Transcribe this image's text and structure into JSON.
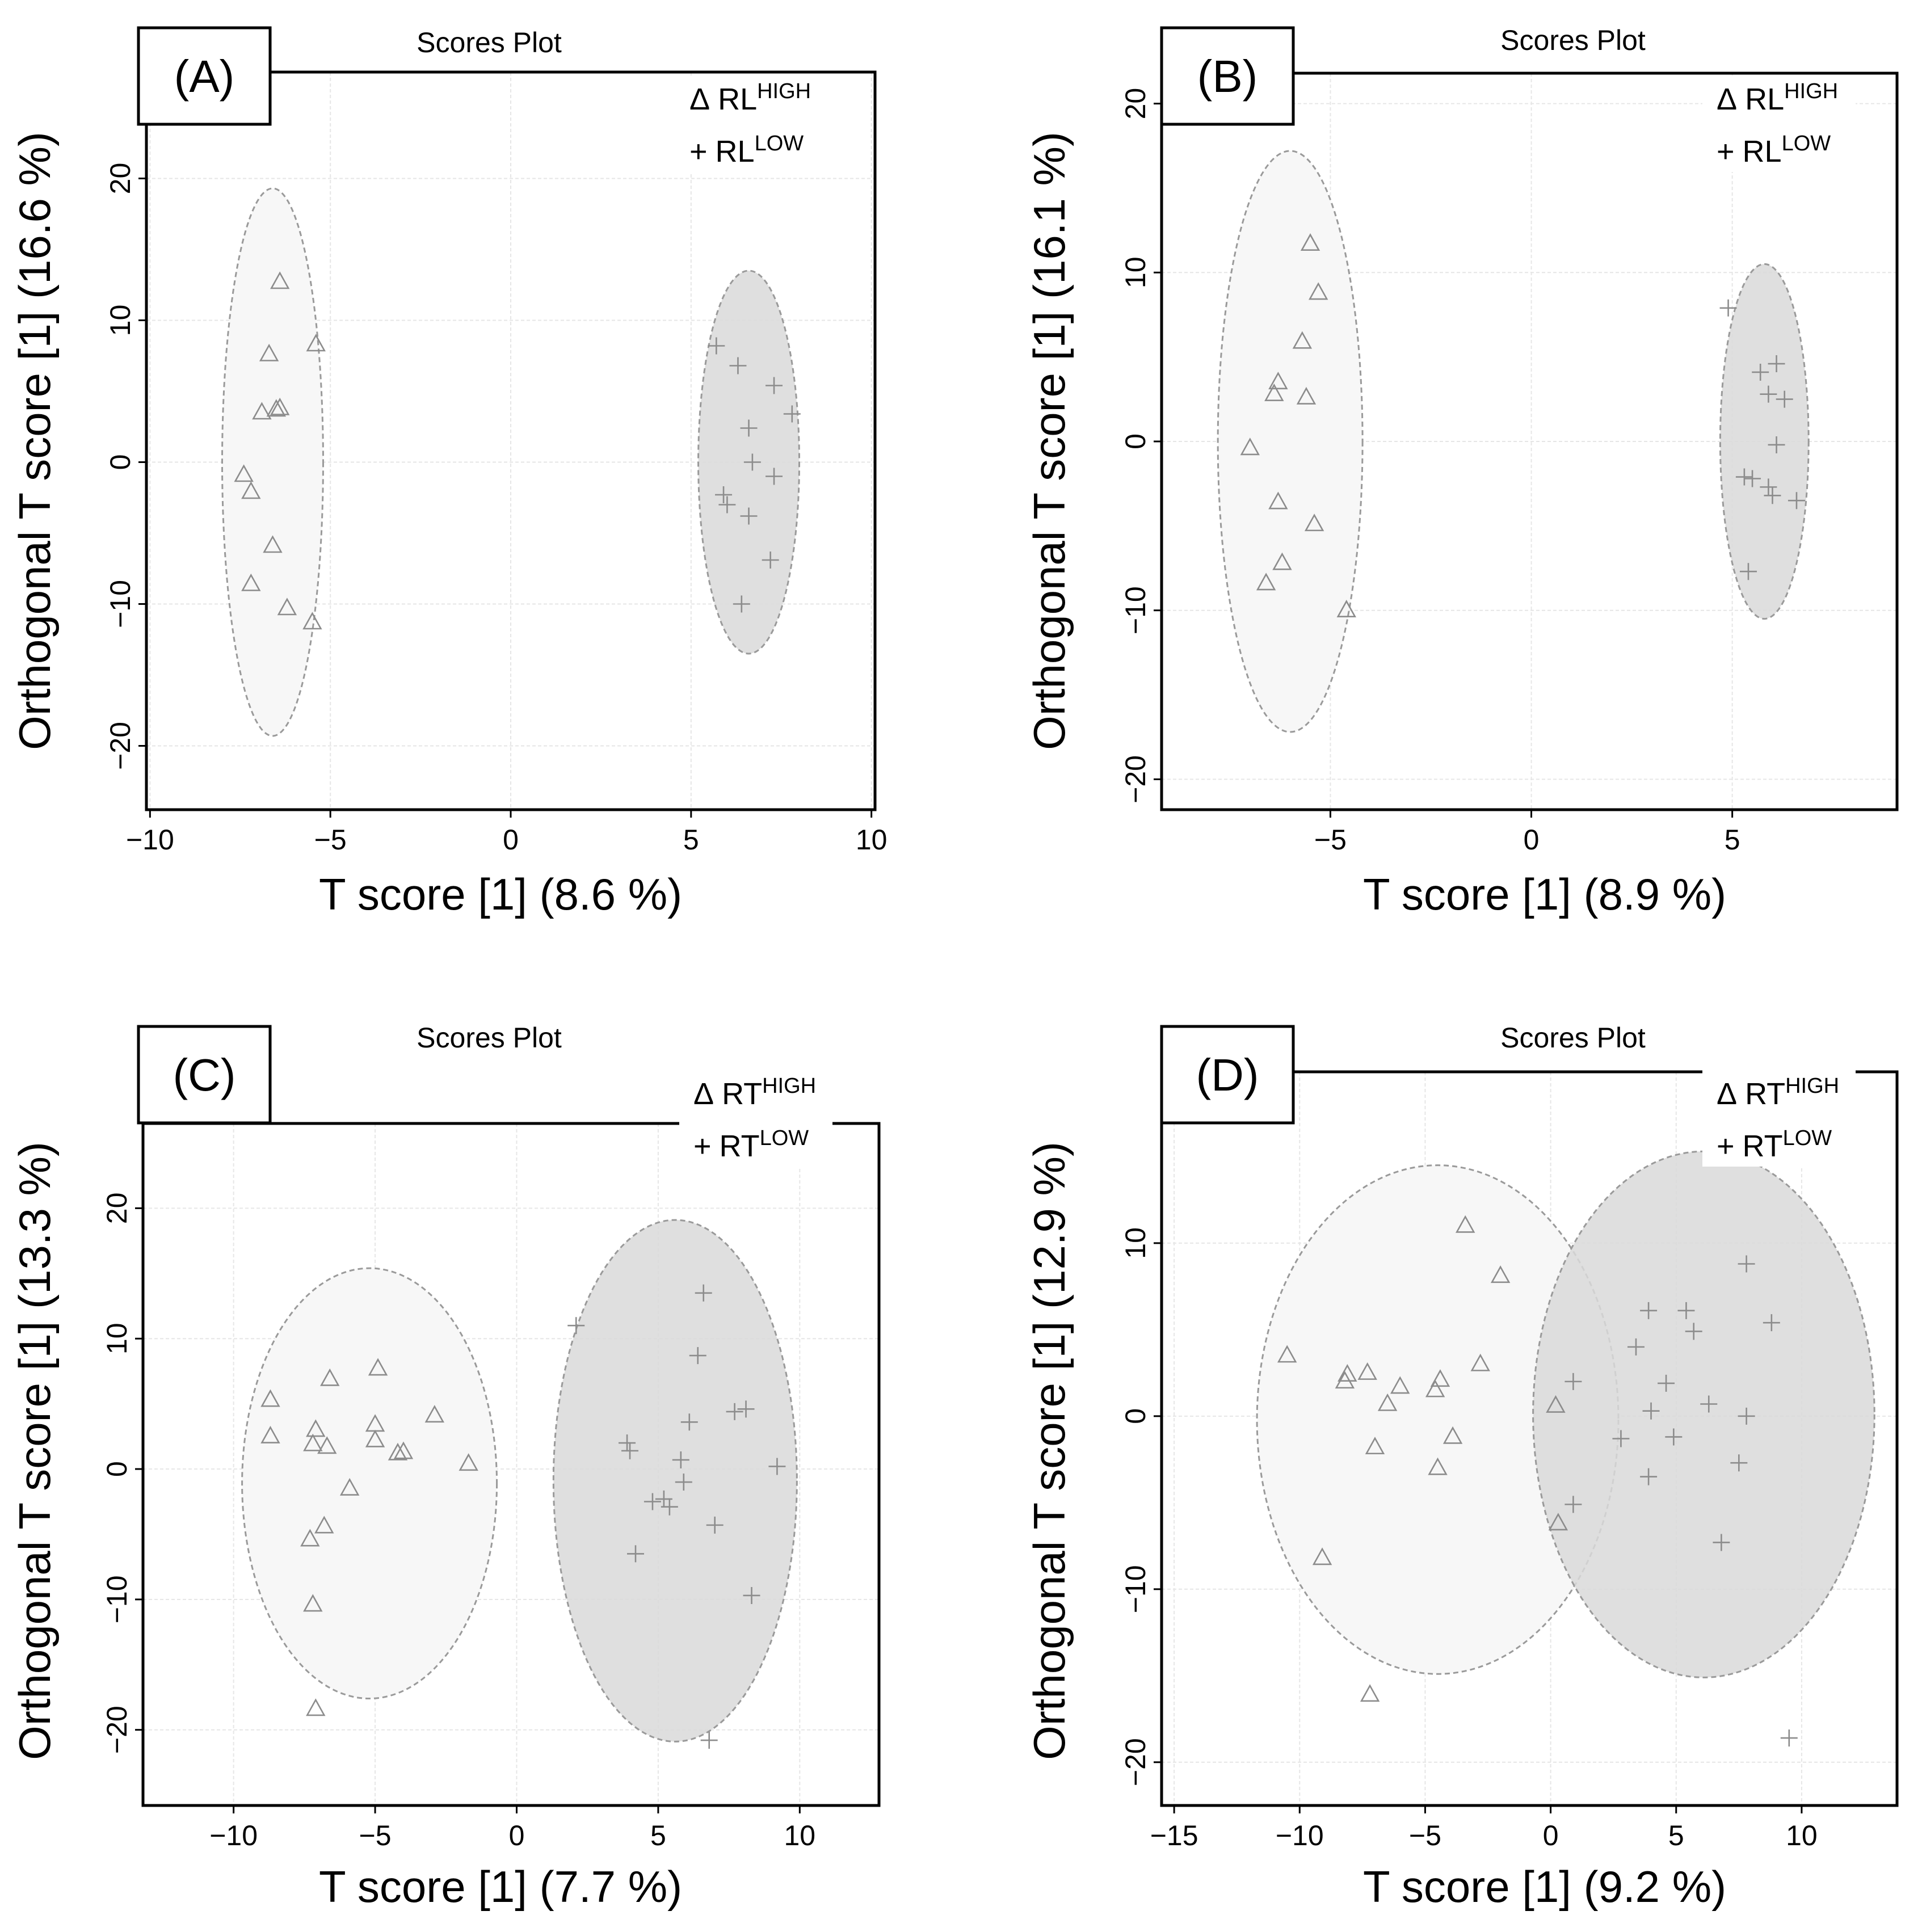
{
  "chart_data": [
    {
      "type": "scatter",
      "panel_label": "(A)",
      "title": "Scores Plot",
      "xlabel": "T score [1] (8.6 %)",
      "ylabel": "Orthogonal T score [1] (16.6 %)",
      "xlim": [
        -10.1,
        10.1
      ],
      "ylim": [
        -24.5,
        27.5
      ],
      "xticks": [
        -10,
        -5,
        0,
        5,
        10
      ],
      "xtick_labels": [
        "−10",
        "−5",
        "0",
        "5",
        "10"
      ],
      "yticks": [
        -20,
        -10,
        0,
        10,
        20
      ],
      "ytick_labels": [
        "−20",
        "−10",
        "0",
        "10",
        "20"
      ],
      "grid": true,
      "legend": [
        {
          "symbol": "Δ",
          "text": "RL",
          "sup": "HIGH"
        },
        {
          "symbol": "+",
          "text": "RL",
          "sup": "LOW"
        }
      ],
      "ellipses": [
        {
          "series": "RL HIGH",
          "cx": -6.6,
          "cy": 0,
          "rx": 1.4,
          "ry": 19.3,
          "fill": "#f7f7f7"
        },
        {
          "series": "RL LOW",
          "cx": 6.6,
          "cy": 0,
          "rx": 1.4,
          "ry": 13.5,
          "fill": "#d9d9d9"
        }
      ],
      "series": [
        {
          "name": "RL HIGH",
          "marker": "triangle",
          "points": [
            [
              -6.4,
              12.7
            ],
            [
              -5.4,
              8.3
            ],
            [
              -6.7,
              7.6
            ],
            [
              -6.4,
              3.8
            ],
            [
              -6.5,
              3.7
            ],
            [
              -6.9,
              3.5
            ],
            [
              -7.4,
              -0.9
            ],
            [
              -7.2,
              -2.1
            ],
            [
              -6.6,
              -5.9
            ],
            [
              -7.2,
              -8.6
            ],
            [
              -6.2,
              -10.3
            ],
            [
              -5.5,
              -11.3
            ]
          ]
        },
        {
          "name": "RL LOW",
          "marker": "plus",
          "points": [
            [
              5.7,
              8.2
            ],
            [
              6.3,
              6.8
            ],
            [
              7.3,
              5.4
            ],
            [
              7.8,
              3.4
            ],
            [
              6.6,
              2.4
            ],
            [
              6.7,
              0
            ],
            [
              7.3,
              -1
            ],
            [
              5.9,
              -2.3
            ],
            [
              6.0,
              -3
            ],
            [
              6.6,
              -3.8
            ],
            [
              7.2,
              -6.9
            ],
            [
              6.4,
              -10
            ]
          ]
        }
      ]
    },
    {
      "type": "scatter",
      "panel_label": "(B)",
      "title": "Scores Plot",
      "xlabel": "T score [1] (8.9 %)",
      "ylabel": "Orthogonal T score [1] (16.1 %)",
      "xlim": [
        -9.2,
        9.1
      ],
      "ylim": [
        -21.8,
        21.8
      ],
      "xticks": [
        -5,
        0,
        5
      ],
      "xtick_labels": [
        "−5",
        "0",
        "5"
      ],
      "yticks": [
        -20,
        -10,
        0,
        10,
        20
      ],
      "ytick_labels": [
        "−20",
        "−10",
        "0",
        "10",
        "20"
      ],
      "grid": true,
      "legend": [
        {
          "symbol": "Δ",
          "text": "RL",
          "sup": "HIGH"
        },
        {
          "symbol": "+",
          "text": "RL",
          "sup": "LOW"
        }
      ],
      "ellipses": [
        {
          "series": "RL HIGH",
          "cx": -6.0,
          "cy": 0,
          "rx": 1.8,
          "ry": 17.2,
          "fill": "#f7f7f7"
        },
        {
          "series": "RL LOW",
          "cx": 5.8,
          "cy": 0,
          "rx": 1.1,
          "ry": 10.5,
          "fill": "#d9d9d9"
        }
      ],
      "series": [
        {
          "name": "RL HIGH",
          "marker": "triangle",
          "points": [
            [
              -5.5,
              11.7
            ],
            [
              -5.3,
              8.8
            ],
            [
              -5.7,
              5.9
            ],
            [
              -6.3,
              3.5
            ],
            [
              -6.4,
              2.8
            ],
            [
              -5.6,
              2.6
            ],
            [
              -7.0,
              -0.4
            ],
            [
              -6.3,
              -3.6
            ],
            [
              -5.4,
              -4.9
            ],
            [
              -6.2,
              -7.2
            ],
            [
              -6.6,
              -8.4
            ],
            [
              -4.6,
              -10
            ]
          ]
        },
        {
          "name": "RL LOW",
          "marker": "plus",
          "points": [
            [
              4.9,
              7.9
            ],
            [
              6.1,
              4.6
            ],
            [
              5.7,
              4.1
            ],
            [
              5.9,
              2.8
            ],
            [
              6.3,
              2.5
            ],
            [
              6.1,
              -0.2
            ],
            [
              5.3,
              -2.1
            ],
            [
              5.5,
              -2.2
            ],
            [
              5.9,
              -2.7
            ],
            [
              6.0,
              -3.2
            ],
            [
              6.6,
              -3.5
            ],
            [
              5.4,
              -7.7
            ]
          ]
        }
      ]
    },
    {
      "type": "scatter",
      "panel_label": "(C)",
      "title": "Scores Plot",
      "xlabel": "T score [1] (7.7 %)",
      "ylabel": "Orthogonal T score [1] (13.3 %)",
      "xlim": [
        -13.2,
        12.8
      ],
      "ylim": [
        -25.8,
        26.5
      ],
      "xticks": [
        -10,
        -5,
        0,
        5,
        10
      ],
      "xtick_labels": [
        "−10",
        "−5",
        "0",
        "5",
        "10"
      ],
      "yticks": [
        -20,
        -10,
        0,
        10,
        20
      ],
      "ytick_labels": [
        "−20",
        "−10",
        "0",
        "10",
        "20"
      ],
      "grid": true,
      "legend": [
        {
          "symbol": "Δ",
          "text": "RT",
          "sup": "HIGH"
        },
        {
          "symbol": "+",
          "text": "RT",
          "sup": "LOW"
        }
      ],
      "ellipses": [
        {
          "series": "RT HIGH",
          "cx": -5.2,
          "cy": -1.1,
          "rx": 4.5,
          "ry": 16.5,
          "fill": "#f7f7f7"
        },
        {
          "series": "RT LOW",
          "cx": 5.6,
          "cy": -0.9,
          "rx": 4.3,
          "ry": 20.0,
          "fill": "#d9d9d9"
        }
      ],
      "series": [
        {
          "name": "RT HIGH",
          "marker": "triangle",
          "points": [
            [
              -8.7,
              5.3
            ],
            [
              -6.6,
              6.9
            ],
            [
              -4.9,
              7.7
            ],
            [
              -2.9,
              4.1
            ],
            [
              -5.0,
              3.4
            ],
            [
              -7.1,
              3.0
            ],
            [
              -8.7,
              2.5
            ],
            [
              -5.0,
              2.2
            ],
            [
              -7.2,
              1.9
            ],
            [
              -6.7,
              1.7
            ],
            [
              -4.2,
              1.2
            ],
            [
              -4.0,
              1.3
            ],
            [
              -1.7,
              0.4
            ],
            [
              -5.9,
              -1.5
            ],
            [
              -6.8,
              -4.4
            ],
            [
              -7.3,
              -5.4
            ],
            [
              -7.2,
              -10.4
            ],
            [
              -7.1,
              -18.4
            ]
          ]
        },
        {
          "name": "RT LOW",
          "marker": "plus",
          "points": [
            [
              2.1,
              11
            ],
            [
              6.6,
              13.5
            ],
            [
              6.4,
              8.7
            ],
            [
              8.1,
              4.6
            ],
            [
              7.7,
              4.4
            ],
            [
              6.1,
              3.6
            ],
            [
              3.9,
              2.0
            ],
            [
              4.0,
              1.4
            ],
            [
              5.8,
              0.7
            ],
            [
              9.2,
              0.2
            ],
            [
              5.9,
              -1
            ],
            [
              5.2,
              -2.3
            ],
            [
              4.8,
              -2.5
            ],
            [
              5.4,
              -2.9
            ],
            [
              7.0,
              -4.3
            ],
            [
              4.2,
              -6.5
            ],
            [
              8.3,
              -9.7
            ],
            [
              6.8,
              -20.8
            ]
          ]
        }
      ]
    },
    {
      "type": "scatter",
      "panel_label": "(D)",
      "title": "Scores Plot",
      "xlabel": "T score [1] (9.2 %)",
      "ylabel": "Orthogonal T score [1] (12.9 %)",
      "xlim": [
        -15.5,
        13.8
      ],
      "ylim": [
        -22.5,
        19.9
      ],
      "xticks": [
        -15,
        -10,
        -5,
        0,
        5,
        10
      ],
      "xtick_labels": [
        "−15",
        "−10",
        "−5",
        "0",
        "5",
        "10"
      ],
      "yticks": [
        -20,
        -10,
        0,
        10
      ],
      "ytick_labels": [
        "−20",
        "−10",
        "0",
        "10"
      ],
      "grid": true,
      "legend": [
        {
          "symbol": "Δ",
          "text": "RT",
          "sup": "HIGH"
        },
        {
          "symbol": "+",
          "text": "RT",
          "sup": "LOW"
        }
      ],
      "ellipses": [
        {
          "series": "RT HIGH",
          "cx": -4.5,
          "cy": -0.2,
          "rx": 7.2,
          "ry": 14.7,
          "fill": "#f7f7f7"
        },
        {
          "series": "RT LOW",
          "cx": 6.1,
          "cy": 0.1,
          "rx": 6.8,
          "ry": 15.2,
          "fill": "#d9d9d9"
        }
      ],
      "series": [
        {
          "name": "RT HIGH",
          "marker": "triangle",
          "points": [
            [
              -3.4,
              11
            ],
            [
              -2.0,
              8.1
            ],
            [
              -10.5,
              3.5
            ],
            [
              -2.8,
              3.0
            ],
            [
              -7.3,
              2.5
            ],
            [
              -8.1,
              2.4
            ],
            [
              -8.2,
              2.0
            ],
            [
              -4.4,
              2.1
            ],
            [
              -6.0,
              1.7
            ],
            [
              -4.6,
              1.5
            ],
            [
              -6.5,
              0.7
            ],
            [
              0.2,
              0.6
            ],
            [
              -3.9,
              -1.2
            ],
            [
              -7.0,
              -1.8
            ],
            [
              -4.5,
              -3
            ],
            [
              0.3,
              -6.2
            ],
            [
              -9.1,
              -8.2
            ],
            [
              -7.2,
              -16.1
            ]
          ]
        },
        {
          "name": "RT LOW",
          "marker": "plus",
          "points": [
            [
              7.8,
              8.8
            ],
            [
              3.9,
              6.1
            ],
            [
              5.4,
              6.1
            ],
            [
              5.7,
              4.9
            ],
            [
              8.8,
              5.4
            ],
            [
              3.4,
              4.0
            ],
            [
              4.6,
              1.9
            ],
            [
              0.9,
              2.0
            ],
            [
              6.3,
              0.7
            ],
            [
              4.0,
              0.3
            ],
            [
              7.8,
              0
            ],
            [
              2.8,
              -1.3
            ],
            [
              4.9,
              -1.2
            ],
            [
              7.5,
              -2.7
            ],
            [
              3.9,
              -3.5
            ],
            [
              0.9,
              -5.1
            ],
            [
              6.8,
              -7.3
            ],
            [
              9.5,
              -18.6
            ]
          ]
        }
      ]
    }
  ]
}
